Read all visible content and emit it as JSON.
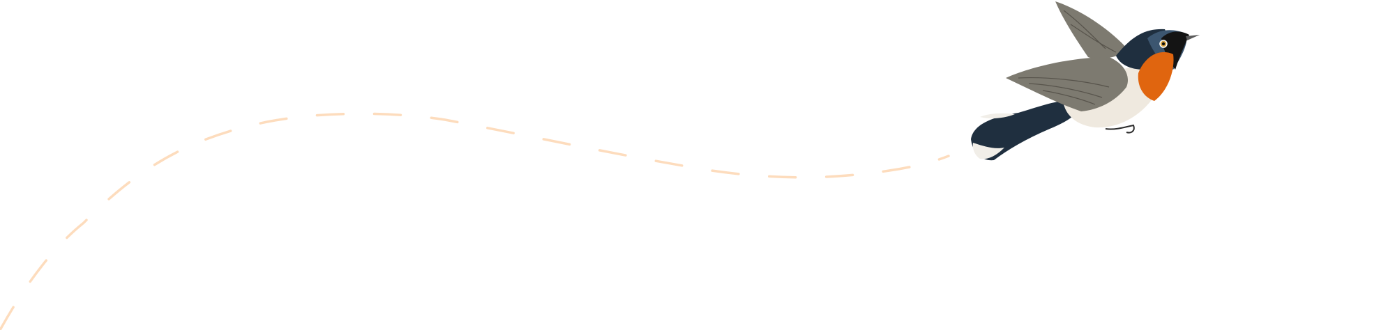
{
  "illustration": {
    "subject": "bird-in-flight",
    "colors": {
      "background": "#ffffff",
      "flight_path": "#fddcbd",
      "bird_blue_black": "#1f2f3f",
      "bird_head_blue": "#3c5670",
      "bird_throat_orange": "#e0650f",
      "bird_belly": "#efe9df",
      "bird_wing_grey": "#7d7a70"
    }
  }
}
